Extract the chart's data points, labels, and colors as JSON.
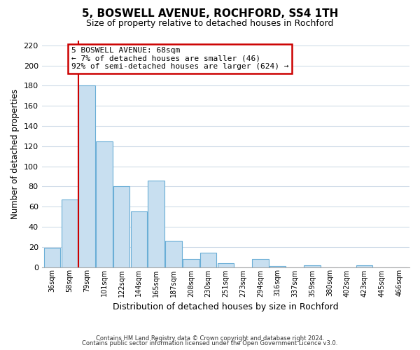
{
  "title": "5, BOSWELL AVENUE, ROCHFORD, SS4 1TH",
  "subtitle": "Size of property relative to detached houses in Rochford",
  "xlabel": "Distribution of detached houses by size in Rochford",
  "ylabel": "Number of detached properties",
  "footnote1": "Contains HM Land Registry data © Crown copyright and database right 2024.",
  "footnote2": "Contains public sector information licensed under the Open Government Licence v3.0.",
  "bin_labels": [
    "36sqm",
    "58sqm",
    "79sqm",
    "101sqm",
    "122sqm",
    "144sqm",
    "165sqm",
    "187sqm",
    "208sqm",
    "230sqm",
    "251sqm",
    "273sqm",
    "294sqm",
    "316sqm",
    "337sqm",
    "359sqm",
    "380sqm",
    "402sqm",
    "423sqm",
    "445sqm",
    "466sqm"
  ],
  "bar_heights": [
    19,
    67,
    180,
    125,
    80,
    55,
    86,
    26,
    8,
    14,
    4,
    0,
    8,
    1,
    0,
    2,
    0,
    0,
    2,
    0,
    0
  ],
  "bar_color": "#c8dff0",
  "bar_edge_color": "#6aaed6",
  "red_line_x": 1.5,
  "annotation_title": "5 BOSWELL AVENUE: 68sqm",
  "annotation_line1": "← 7% of detached houses are smaller (46)",
  "annotation_line2": "92% of semi-detached houses are larger (624) →",
  "annotation_box_color": "#ffffff",
  "annotation_box_edge": "#cc0000",
  "ylim": [
    0,
    225
  ],
  "yticks": [
    0,
    20,
    40,
    60,
    80,
    100,
    120,
    140,
    160,
    180,
    200,
    220
  ],
  "background_color": "#ffffff",
  "grid_color": "#d0dce8"
}
